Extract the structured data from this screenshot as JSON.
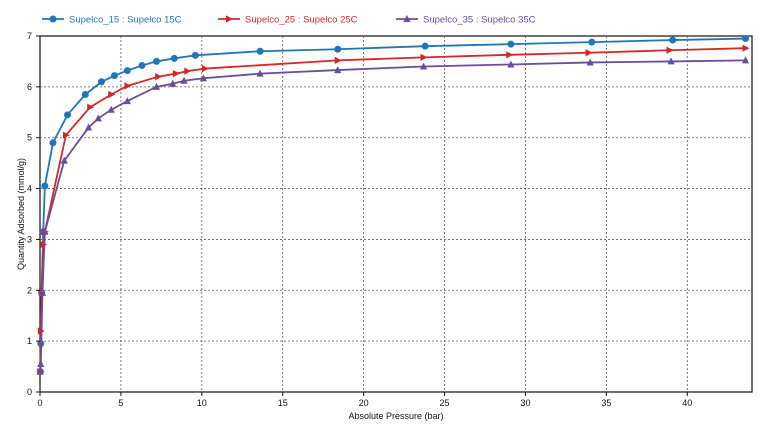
{
  "chart_data": {
    "type": "line",
    "title": "",
    "xlabel": "Absolute Pressure (bar)",
    "ylabel": "Quantity Adsorbed (mmol/g)",
    "xlim": [
      0,
      44
    ],
    "ylim": [
      0,
      7
    ],
    "xticks": [
      0,
      5,
      10,
      15,
      20,
      25,
      30,
      35,
      40
    ],
    "yticks": [
      0,
      1,
      2,
      3,
      4,
      5,
      6,
      7
    ],
    "grid": true,
    "legend_position": "top",
    "series": [
      {
        "name": "Supelco_15 : Supelco 15C",
        "color": "#1f77b4",
        "marker": "circle",
        "x": [
          0.02,
          0.05,
          0.1,
          0.2,
          0.3,
          0.8,
          1.7,
          2.8,
          3.8,
          4.6,
          5.4,
          6.3,
          7.2,
          8.3,
          9.6,
          13.6,
          18.4,
          23.8,
          29.1,
          34.1,
          39.1,
          43.6
        ],
        "y": [
          0.4,
          0.95,
          1.95,
          3.15,
          4.05,
          4.9,
          5.45,
          5.85,
          6.1,
          6.22,
          6.32,
          6.42,
          6.5,
          6.56,
          6.62,
          6.7,
          6.74,
          6.8,
          6.84,
          6.88,
          6.92,
          6.95
        ]
      },
      {
        "name": "Supelco_25 : Supelco 25C",
        "color": "#d62728",
        "marker": "triangle-right",
        "x": [
          0.02,
          0.05,
          0.1,
          0.2,
          0.3,
          1.6,
          3.1,
          4.4,
          5.4,
          7.3,
          8.4,
          9.1,
          10.2,
          18.4,
          23.7,
          29.0,
          33.9,
          38.9,
          43.6
        ],
        "y": [
          0.4,
          1.2,
          1.95,
          2.9,
          3.15,
          5.05,
          5.6,
          5.85,
          6.02,
          6.2,
          6.26,
          6.31,
          6.36,
          6.52,
          6.58,
          6.63,
          6.67,
          6.72,
          6.76
        ]
      },
      {
        "name": "Supelco_35 : Supelco 35C",
        "color": "#6a4c9c",
        "marker": "triangle-up",
        "x": [
          0.02,
          0.05,
          0.15,
          0.3,
          1.5,
          3.0,
          3.6,
          4.4,
          5.4,
          7.2,
          8.2,
          8.9,
          10.1,
          13.6,
          18.4,
          23.7,
          29.1,
          34.0,
          39.0,
          43.6
        ],
        "y": [
          0.4,
          0.55,
          1.95,
          3.15,
          4.55,
          5.2,
          5.38,
          5.55,
          5.72,
          6.0,
          6.06,
          6.12,
          6.17,
          6.26,
          6.33,
          6.4,
          6.44,
          6.48,
          6.5,
          6.52
        ]
      }
    ]
  }
}
